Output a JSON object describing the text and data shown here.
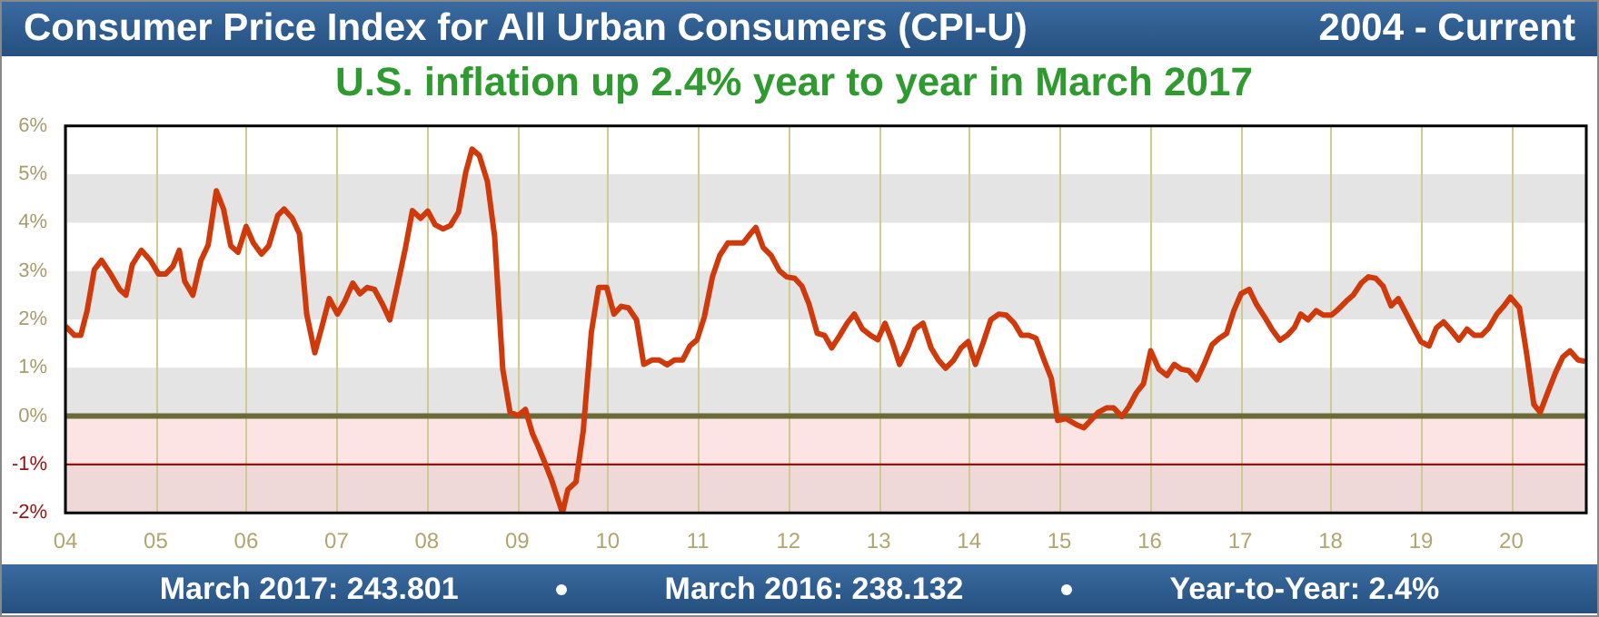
{
  "chart_data": {
    "type": "line",
    "title": "Consumer Price Index for All Urban Consumers (CPI-U)",
    "subtitle": "U.S. inflation up 2.4% year to year in March 2017",
    "annotations": [
      "2004 - Current",
      "March 2017:  243.801",
      "March 2016:  238.132",
      "Year-to-Year:  2.4%"
    ],
    "x": [
      2004.0,
      2004.1,
      2004.17,
      2004.24,
      2004.32,
      2004.4,
      2004.5,
      2004.6,
      2004.67,
      2004.74,
      2004.84,
      2004.94,
      2005.03,
      2005.11,
      2005.19,
      2005.26,
      2005.32,
      2005.41,
      2005.5,
      2005.58,
      2005.67,
      2005.75,
      2005.83,
      2005.91,
      2006.0,
      2006.08,
      2006.17,
      2006.25,
      2006.35,
      2006.42,
      2006.51,
      2006.59,
      2006.67,
      2006.76,
      2006.84,
      2006.92,
      2007.01,
      2007.09,
      2007.18,
      2007.26,
      2007.34,
      2007.42,
      2007.51,
      2007.59,
      2007.68,
      2007.76,
      2007.84,
      2007.93,
      2008.01,
      2008.09,
      2008.18,
      2008.26,
      2008.35,
      2008.43,
      2008.5,
      2008.58,
      2008.67,
      2008.75,
      2008.84,
      2008.92,
      2009.01,
      2009.09,
      2009.17,
      2009.23,
      2009.3,
      2009.38,
      2009.5,
      2009.56,
      2009.65,
      2009.73,
      2009.82,
      2009.9,
      2009.99,
      2010.07,
      2010.15,
      2010.23,
      2010.32,
      2010.4,
      2010.49,
      2010.57,
      2010.66,
      2010.74,
      2010.83,
      2010.91,
      2010.99,
      2011.07,
      2011.16,
      2011.24,
      2011.33,
      2011.41,
      2011.5,
      2011.58,
      2011.64,
      2011.72,
      2011.81,
      2011.9,
      2011.98,
      2012.07,
      2012.15,
      2012.23,
      2012.32,
      2012.4,
      2012.48,
      2012.57,
      2012.65,
      2012.73,
      2012.82,
      2012.91,
      2012.99,
      2013.07,
      2013.15,
      2013.23,
      2013.32,
      2013.4,
      2013.49,
      2013.58,
      2013.66,
      2013.74,
      2013.83,
      2013.91,
      2013.99,
      2014.07,
      2014.16,
      2014.24,
      2014.33,
      2014.41,
      2014.5,
      2014.58,
      2014.66,
      2014.74,
      2014.83,
      2014.91,
      2014.98,
      2015.07,
      2015.19,
      2015.27,
      2015.35,
      2015.43,
      2015.52,
      2015.6,
      2015.69,
      2015.77,
      2015.85,
      2015.93,
      2016.01,
      2016.1,
      2016.19,
      2016.27,
      2016.35,
      2016.43,
      2016.52,
      2016.6,
      2016.69,
      2016.77,
      2016.85,
      2016.93,
      2017.01,
      2017.1,
      2017.18,
      2017.27,
      2017.35,
      2017.44,
      2017.52,
      2017.6,
      2017.67,
      2017.75,
      2017.84,
      2017.92,
      2018.01,
      2018.08,
      2018.17,
      2018.25,
      2018.34,
      2018.42,
      2018.5,
      2018.58,
      2018.67,
      2018.75,
      2018.84,
      2018.92,
      2019.0,
      2019.09,
      2019.17,
      2019.25,
      2019.34,
      2019.42,
      2019.51,
      2019.59,
      2019.67,
      2019.75,
      2019.84,
      2019.92,
      2019.99,
      2020.09,
      2020.17,
      2020.25,
      2020.32,
      2020.41,
      2020.49,
      2020.57,
      2020.65,
      2020.74,
      2020.82
    ],
    "series": [
      {
        "color": "#d03a0a",
        "values": [
          1.86,
          1.67,
          1.67,
          2.18,
          3.03,
          3.22,
          2.94,
          2.62,
          2.5,
          3.13,
          3.43,
          3.22,
          2.94,
          2.94,
          3.1,
          3.43,
          2.79,
          2.5,
          3.22,
          3.54,
          4.66,
          4.28,
          3.52,
          3.39,
          3.92,
          3.58,
          3.35,
          3.52,
          4.15,
          4.28,
          4.09,
          3.77,
          2.11,
          1.31,
          1.86,
          2.43,
          2.11,
          2.37,
          2.75,
          2.53,
          2.66,
          2.62,
          2.31,
          1.99,
          2.75,
          3.45,
          4.25,
          4.09,
          4.24,
          3.96,
          3.87,
          3.94,
          4.22,
          5.04,
          5.52,
          5.39,
          4.85,
          3.71,
          0.97,
          0.08,
          0.01,
          0.14,
          -0.37,
          -0.62,
          -0.94,
          -1.32,
          -2.0,
          -1.52,
          -1.36,
          -0.31,
          1.73,
          2.66,
          2.66,
          2.11,
          2.27,
          2.24,
          1.99,
          1.07,
          1.16,
          1.16,
          1.06,
          1.16,
          1.16,
          1.45,
          1.58,
          2.05,
          2.88,
          3.32,
          3.58,
          3.58,
          3.58,
          3.77,
          3.9,
          3.49,
          3.32,
          3.01,
          2.88,
          2.85,
          2.69,
          2.31,
          1.71,
          1.67,
          1.41,
          1.67,
          1.92,
          2.11,
          1.8,
          1.67,
          1.58,
          1.92,
          1.54,
          1.07,
          1.41,
          1.8,
          1.92,
          1.41,
          1.16,
          0.99,
          1.16,
          1.41,
          1.54,
          1.07,
          1.54,
          1.99,
          2.11,
          2.09,
          1.92,
          1.67,
          1.67,
          1.61,
          1.16,
          0.78,
          -0.09,
          -0.05,
          -0.18,
          -0.24,
          -0.08,
          0.08,
          0.17,
          0.17,
          -0.01,
          0.2,
          0.48,
          0.67,
          1.35,
          0.97,
          0.84,
          1.07,
          0.97,
          0.94,
          0.75,
          1.07,
          1.48,
          1.61,
          1.71,
          2.18,
          2.53,
          2.62,
          2.31,
          2.05,
          1.8,
          1.57,
          1.67,
          1.83,
          2.11,
          1.99,
          2.18,
          2.09,
          2.09,
          2.2,
          2.37,
          2.5,
          2.75,
          2.88,
          2.85,
          2.69,
          2.28,
          2.43,
          2.11,
          1.82,
          1.54,
          1.45,
          1.82,
          1.95,
          1.76,
          1.57,
          1.8,
          1.67,
          1.67,
          1.82,
          2.11,
          2.28,
          2.46,
          2.24,
          1.29,
          0.24,
          0.08,
          0.52,
          0.9,
          1.22,
          1.35,
          1.16,
          1.13
        ]
      }
    ],
    "xlim": [
      2004,
      2020.83
    ],
    "xticks": [
      {
        "value": 2004,
        "label": "04"
      },
      {
        "value": 2005,
        "label": "05"
      },
      {
        "value": 2006,
        "label": "06"
      },
      {
        "value": 2007,
        "label": "07"
      },
      {
        "value": 2008,
        "label": "08"
      },
      {
        "value": 2009,
        "label": "09"
      },
      {
        "value": 2010,
        "label": "10"
      },
      {
        "value": 2011,
        "label": "11"
      },
      {
        "value": 2012,
        "label": "12"
      },
      {
        "value": 2013,
        "label": "13"
      },
      {
        "value": 2014,
        "label": "14"
      },
      {
        "value": 2015,
        "label": "15"
      },
      {
        "value": 2016,
        "label": "16"
      },
      {
        "value": 2017,
        "label": "17"
      },
      {
        "value": 2018,
        "label": "18"
      },
      {
        "value": 2019,
        "label": "19"
      },
      {
        "value": 2020,
        "label": "20"
      }
    ],
    "ylim": [
      -2,
      6
    ],
    "yticks": [
      {
        "value": -2,
        "label": "-2%"
      },
      {
        "value": -1,
        "label": "-1%"
      },
      {
        "value": 0,
        "label": "0%"
      },
      {
        "value": 1,
        "label": "1%"
      },
      {
        "value": 2,
        "label": "2%"
      },
      {
        "value": 3,
        "label": "3%"
      },
      {
        "value": 4,
        "label": "4%"
      },
      {
        "value": 5,
        "label": "5%"
      },
      {
        "value": 6,
        "label": "6%"
      }
    ],
    "bands": [
      {
        "axis": "y",
        "from": -2,
        "to": 0,
        "color": "#fde4e4"
      },
      {
        "axis": "y",
        "from": -2,
        "to": -1,
        "color": "#efd8d8"
      }
    ],
    "ref_lines": [
      {
        "axis": "y",
        "value": 0,
        "color": "#6b6b3a"
      },
      {
        "axis": "y",
        "value": -1,
        "color": "#9a1010"
      }
    ],
    "grid": true,
    "marker": "none",
    "line_style": "solid",
    "legend": false
  }
}
